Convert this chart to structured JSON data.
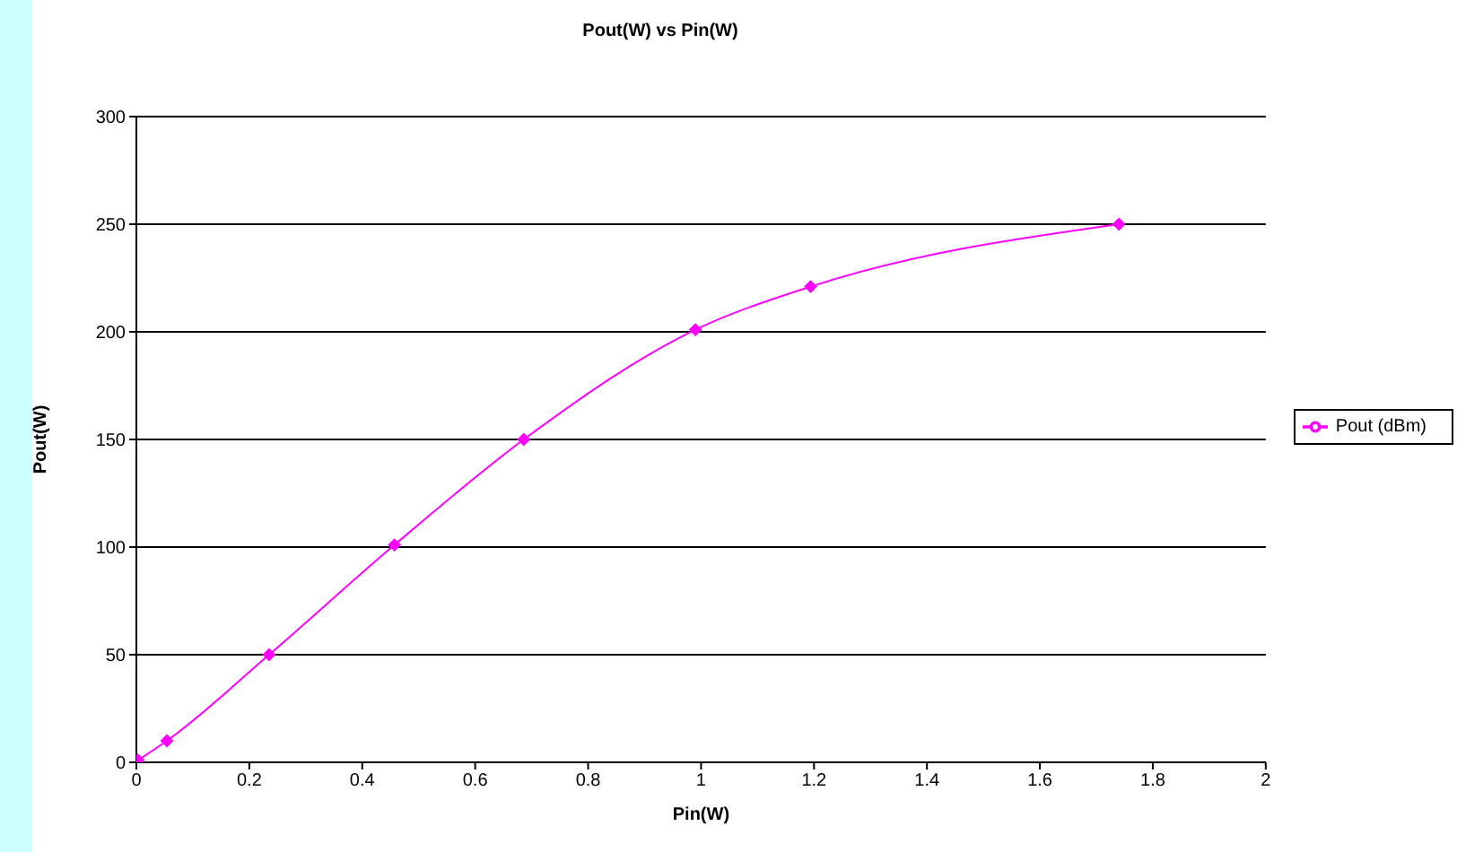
{
  "chart_data": {
    "type": "line",
    "title": "Pout(W) vs Pin(W)",
    "xlabel": "Pin(W)",
    "ylabel": "Pout(W)",
    "x": [
      0.003,
      0.054,
      0.235,
      0.457,
      0.686,
      0.99,
      1.194,
      1.74
    ],
    "series": [
      {
        "name": "Pout (dBm)",
        "color": "#ff00ff",
        "values": [
          1,
          10,
          50,
          101,
          150,
          201,
          221,
          250
        ]
      }
    ],
    "xlim": [
      0,
      2
    ],
    "xticks": [
      0,
      0.2,
      0.4,
      0.6,
      0.8,
      1,
      1.2,
      1.4,
      1.6,
      1.8,
      2
    ],
    "ylim": [
      0,
      300
    ],
    "yticks": [
      0,
      50,
      100,
      150,
      200,
      250,
      300
    ],
    "grid": "y",
    "legend": "right",
    "marker": "diamond",
    "line_style": "solid"
  }
}
